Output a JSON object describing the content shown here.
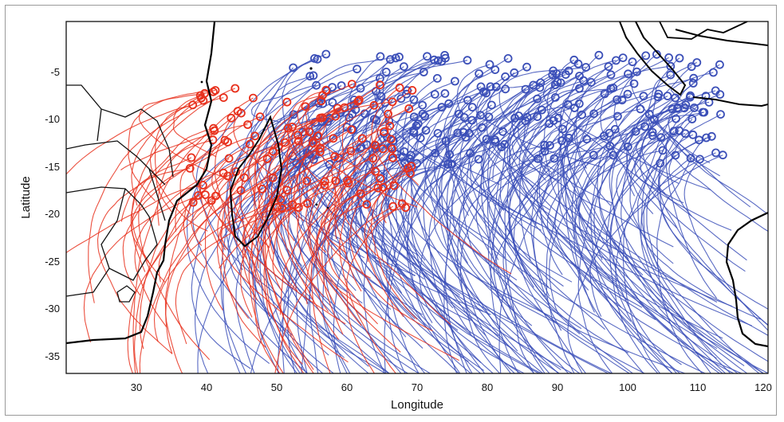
{
  "figure": {
    "xlabel": "Longitude",
    "ylabel": "Latitude",
    "xlim": [
      20,
      120
    ],
    "ylim": [
      -38,
      -1
    ],
    "x_ticks": [
      "30",
      "40",
      "50",
      "60",
      "70",
      "80",
      "90",
      "100",
      "110",
      "120"
    ],
    "y_ticks": [
      "-5",
      "-10",
      "-15",
      "-20",
      "-25",
      "-30",
      "-35"
    ],
    "colors": {
      "track_red": "#e8301c",
      "track_blue": "#3b4fb8",
      "coast": "#000000",
      "border": "#111111"
    },
    "map_content": "Southwest Indian Ocean tropical cyclone tracks: red tracks generally originate west of ~70E, blue tracks originate further east; genesis points marked with open circles."
  }
}
